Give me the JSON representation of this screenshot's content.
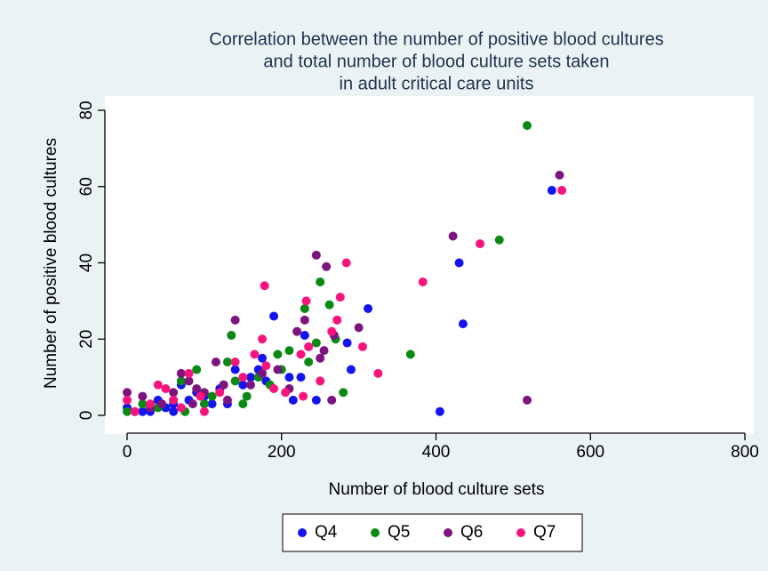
{
  "chart_data": {
    "type": "scatter",
    "title": [
      "Correlation between the number of positive blood cultures",
      "and total number of blood culture sets taken",
      "in adult critical care units"
    ],
    "x_label": "Number of blood culture sets",
    "y_label": "Number of positive blood cultures",
    "xlim": [
      0,
      800
    ],
    "ylim": [
      0,
      80
    ],
    "xticks": [
      0,
      200,
      400,
      600,
      800
    ],
    "yticks": [
      0,
      20,
      40,
      60,
      80
    ],
    "legend": "bottom",
    "series": [
      {
        "name": "Q4",
        "color": "#1414f0",
        "x": [
          550,
          430,
          435,
          312,
          405,
          290,
          285,
          190,
          230,
          225,
          245,
          215,
          210,
          180,
          175,
          170,
          160,
          150,
          140,
          130,
          120,
          100,
          80,
          70,
          60,
          50,
          40,
          30,
          20,
          10,
          0,
          60,
          90,
          110
        ],
        "values": [
          59,
          40,
          24,
          28,
          1,
          12,
          19,
          26,
          21,
          10,
          4,
          4,
          10,
          9,
          15,
          12,
          10,
          8,
          12,
          3,
          7,
          5,
          4,
          8,
          3,
          2,
          4,
          1,
          1,
          1,
          2,
          1,
          6,
          3
        ]
      },
      {
        "name": "Q5",
        "color": "#0a8a14",
        "x": [
          518,
          482,
          367,
          280,
          250,
          262,
          270,
          230,
          235,
          245,
          210,
          200,
          195,
          185,
          170,
          155,
          150,
          140,
          135,
          130,
          125,
          110,
          90,
          75,
          60,
          40,
          20,
          0,
          70,
          100
        ],
        "values": [
          76,
          46,
          16,
          6,
          35,
          29,
          20,
          28,
          14,
          19,
          17,
          12,
          16,
          8,
          10,
          5,
          3,
          9,
          21,
          14,
          8,
          5,
          12,
          1,
          4,
          2,
          3,
          1,
          9,
          3
        ]
      },
      {
        "name": "Q6",
        "color": "#7d1480",
        "x": [
          560,
          422,
          518,
          245,
          258,
          300,
          268,
          265,
          250,
          255,
          230,
          220,
          210,
          195,
          175,
          160,
          140,
          125,
          115,
          100,
          90,
          80,
          70,
          60,
          45,
          30,
          20,
          0,
          130,
          85
        ],
        "values": [
          63,
          47,
          4,
          42,
          39,
          23,
          21,
          4,
          15,
          17,
          25,
          22,
          7,
          12,
          11,
          8,
          25,
          8,
          14,
          6,
          7,
          9,
          11,
          6,
          3,
          2,
          5,
          6,
          4,
          3
        ]
      },
      {
        "name": "Q7",
        "color": "#f7157d",
        "x": [
          563,
          457,
          383,
          284,
          276,
          272,
          265,
          232,
          235,
          225,
          228,
          250,
          305,
          325,
          178,
          175,
          165,
          180,
          190,
          205,
          150,
          140,
          120,
          100,
          95,
          80,
          60,
          50,
          40,
          30,
          10,
          0,
          70
        ],
        "values": [
          59,
          45,
          35,
          40,
          31,
          25,
          22,
          30,
          18,
          16,
          5,
          9,
          18,
          11,
          34,
          20,
          16,
          13,
          7,
          6,
          10,
          14,
          6,
          1,
          5,
          11,
          4,
          7,
          8,
          3,
          1,
          4,
          2
        ]
      }
    ]
  }
}
